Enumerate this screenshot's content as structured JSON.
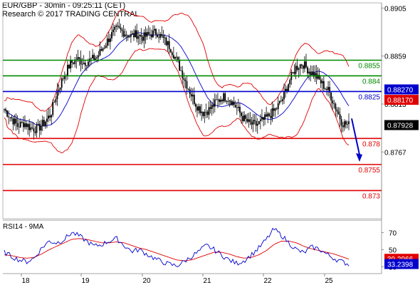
{
  "header": {
    "title": "EUR/GBP - 30min - 09:25:11 (CET)",
    "research": "Research © 2017 TRADING CENTRAL"
  },
  "colors": {
    "candle": "#000000",
    "bollinger": "#e00000",
    "moving_average": "#0000cc",
    "resistance": "#008800",
    "pivot": "#0000cc",
    "support": "#e00000",
    "arrow": "#0000cc",
    "price_badge": "#000000",
    "rsi_line": "#0000cc",
    "rsi_ma": "#e00000"
  },
  "chart_data": [
    {
      "type": "candlestick",
      "symbol": "EUR/GBP",
      "interval": "30min",
      "x_tick_labels": [
        "18",
        "19",
        "20",
        "21",
        "22",
        "25"
      ],
      "y_tick_labels": [
        "0.8905",
        "0.8859",
        "0.8813",
        "0.8767"
      ],
      "ylim": [
        0.8703,
        0.891
      ],
      "grid": false,
      "indicators": [
        "Bollinger Bands",
        "Moving Average"
      ],
      "close_path": [
        0.8808,
        0.88,
        0.8792,
        0.8795,
        0.879,
        0.8789,
        0.8795,
        0.8803,
        0.8825,
        0.884,
        0.8852,
        0.8856,
        0.8853,
        0.8855,
        0.8858,
        0.8868,
        0.8878,
        0.8885,
        0.8882,
        0.8878,
        0.888,
        0.8877,
        0.888,
        0.8882,
        0.8875,
        0.8868,
        0.8855,
        0.884,
        0.8825,
        0.8812,
        0.8805,
        0.8808,
        0.8815,
        0.882,
        0.8818,
        0.881,
        0.88,
        0.8794,
        0.8793,
        0.8797,
        0.8802,
        0.8808,
        0.8818,
        0.8835,
        0.8848,
        0.8852,
        0.8845,
        0.884,
        0.8832,
        0.8825,
        0.881,
        0.8795,
        0.87928
      ],
      "horizontal_levels": [
        {
          "label": "0.8855",
          "value": 0.8855,
          "kind": "resistance"
        },
        {
          "label": "0.884",
          "value": 0.884,
          "kind": "resistance"
        },
        {
          "label": "0.8825",
          "value": 0.8825,
          "kind": "pivot"
        },
        {
          "label": "0.878",
          "value": 0.878,
          "kind": "support"
        },
        {
          "label": "0.8755",
          "value": 0.8755,
          "kind": "support"
        },
        {
          "label": "0.873",
          "value": 0.873,
          "kind": "support"
        }
      ],
      "price_badges": [
        {
          "label": "0.88270",
          "value": 0.8827,
          "color": "#0000cc"
        },
        {
          "label": "0.88170",
          "value": 0.8817,
          "color": "#e00000"
        },
        {
          "label": "0.87928",
          "value": 0.87928,
          "color": "#000000"
        }
      ],
      "forecast": "down"
    },
    {
      "type": "line",
      "title": "RSI14 - 9MA",
      "y_tick_labels": [
        "70",
        "50",
        "30"
      ],
      "ylim": [
        22,
        82
      ],
      "series": [
        {
          "values": [
            47,
            42,
            38,
            36,
            40,
            52,
            60,
            58,
            62,
            70,
            66,
            60,
            54,
            56,
            60,
            63,
            55,
            48,
            50,
            45,
            40,
            36,
            33,
            31,
            36,
            42,
            48,
            55,
            50,
            44,
            38,
            34,
            37,
            44,
            52,
            62,
            74,
            67,
            58,
            50,
            46,
            53,
            51,
            45,
            40,
            36,
            33
          ]
        },
        {
          "values": [
            44,
            43,
            41,
            40,
            41,
            45,
            50,
            54,
            58,
            62,
            63,
            62,
            60,
            58,
            58,
            59,
            58,
            55,
            52,
            50,
            47,
            44,
            41,
            38,
            37,
            38,
            41,
            44,
            47,
            47,
            45,
            42,
            40,
            41,
            44,
            49,
            56,
            60,
            60,
            58,
            54,
            51,
            49,
            47,
            45,
            42,
            39
          ]
        }
      ],
      "badges": [
        {
          "label": "39.2966",
          "value": 39.3,
          "color": "#e00000"
        },
        {
          "label": "33.2398",
          "value": 33.2,
          "color": "#0000cc"
        }
      ]
    }
  ]
}
